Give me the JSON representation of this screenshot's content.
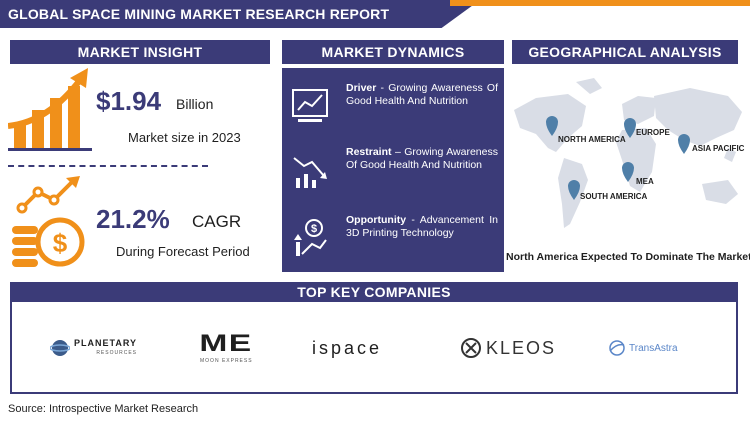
{
  "report_title": "GLOBAL SPACE MINING MARKET RESEARCH REPORT",
  "colors": {
    "navy": "#3b3b78",
    "orange": "#f0901a",
    "map_gray": "#d9dde6",
    "pin": "#4f7fa8"
  },
  "insight": {
    "header": "MARKET INSIGHT",
    "market_size": {
      "value": "$1.94",
      "unit": "Billion",
      "label": "Market size in 2023",
      "icon": "bar-growth-chart-icon"
    },
    "cagr": {
      "value": "21.2%",
      "unit": "CAGR",
      "label": "During Forecast Period",
      "icon": "dollar-coins-growth-icon"
    }
  },
  "dynamics": {
    "header": "MARKET DYNAMICS",
    "items": [
      {
        "title": "Driver",
        "sep": " - ",
        "text": "Growing Awareness Of Good Health And Nutrition",
        "icon": "rising-chart-screen-icon"
      },
      {
        "title": "Restraint",
        "sep": " – ",
        "text": "Growing Awareness Of Good Health And Nutrition",
        "icon": "falling-chart-icon"
      },
      {
        "title": "Opportunity",
        "sep": " - ",
        "text": "Advancement In 3D Printing Technology",
        "icon": "dollar-hand-growth-icon"
      }
    ]
  },
  "geo": {
    "header": "GEOGRAPHICAL ANALYSIS",
    "regions": [
      "NORTH AMERICA",
      "EUROPE",
      "ASIA PACIFIC",
      "MEA",
      "SOUTH AMERICA"
    ],
    "caption": "North America Expected To Dominate The Market"
  },
  "companies": {
    "header": "TOP KEY COMPANIES",
    "logos": [
      {
        "name": "PLANETARY",
        "sub": "RESOURCES"
      },
      {
        "name": "ME",
        "sub": "MOON EXPRESS"
      },
      {
        "name": "ispace",
        "sub": ""
      },
      {
        "name": "KLEOS",
        "sub": ""
      },
      {
        "name": "TransAstra",
        "sub": ""
      }
    ]
  },
  "source": "Source: Introspective Market Research"
}
